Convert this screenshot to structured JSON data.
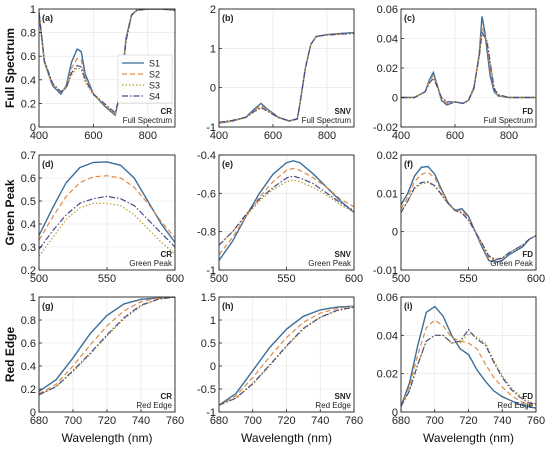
{
  "colors": {
    "S1": "#3b6e9a",
    "S2": "#e08a45",
    "S3": "#b89a2a",
    "S4": "#4b4b86"
  },
  "series_names": [
    "S1",
    "S2",
    "S3",
    "S4"
  ],
  "row_labels": [
    "Full Spectrum",
    "Green Peak",
    "Red Edge"
  ],
  "xlabel": "Wavelength (nm)",
  "chart_data": [
    {
      "type": "line",
      "panel": "(a)",
      "tag": "CR",
      "subtitle": "Full Spectrum",
      "xlim": [
        400,
        900
      ],
      "ylim": [
        0,
        1
      ],
      "xticks": [
        400,
        600,
        800
      ],
      "yticks": [
        0,
        0.2,
        0.4,
        0.6,
        0.8,
        1
      ],
      "ytick_labels": [
        "0",
        "0.2",
        "0.4",
        "0.6",
        "0.8",
        "1"
      ],
      "legend": "top-right",
      "x": [
        400,
        420,
        450,
        480,
        500,
        520,
        540,
        555,
        570,
        600,
        640,
        660,
        680,
        700,
        720,
        740,
        760,
        800,
        850,
        900
      ],
      "series": [
        {
          "name": "S1",
          "values": [
            0.97,
            0.55,
            0.35,
            0.28,
            0.35,
            0.55,
            0.66,
            0.64,
            0.45,
            0.28,
            0.18,
            0.14,
            0.1,
            0.3,
            0.75,
            0.95,
            0.99,
            1.0,
            1.0,
            0.99
          ]
        },
        {
          "name": "S2",
          "values": [
            0.97,
            0.55,
            0.36,
            0.29,
            0.34,
            0.5,
            0.58,
            0.57,
            0.42,
            0.28,
            0.19,
            0.15,
            0.11,
            0.3,
            0.74,
            0.95,
            0.99,
            1.0,
            1.0,
            0.99
          ]
        },
        {
          "name": "S3",
          "values": [
            0.97,
            0.56,
            0.36,
            0.3,
            0.33,
            0.44,
            0.5,
            0.49,
            0.38,
            0.27,
            0.19,
            0.15,
            0.11,
            0.29,
            0.72,
            0.94,
            0.99,
            1.0,
            1.0,
            0.99
          ]
        },
        {
          "name": "S4",
          "values": [
            0.97,
            0.56,
            0.37,
            0.3,
            0.33,
            0.46,
            0.52,
            0.51,
            0.4,
            0.28,
            0.2,
            0.16,
            0.12,
            0.3,
            0.73,
            0.95,
            0.99,
            1.0,
            1.0,
            0.99
          ]
        }
      ]
    },
    {
      "type": "line",
      "panel": "(b)",
      "tag": "SNV",
      "subtitle": "Full Spectrum",
      "xlim": [
        400,
        900
      ],
      "ylim": [
        -1,
        2
      ],
      "xticks": [
        400,
        600,
        800
      ],
      "yticks": [
        -1,
        0,
        1,
        2
      ],
      "ytick_labels": [
        "-1",
        "0",
        "1",
        "2"
      ],
      "x": [
        400,
        450,
        500,
        530,
        555,
        580,
        620,
        660,
        690,
        700,
        720,
        740,
        760,
        800,
        850,
        900
      ],
      "series": [
        {
          "name": "S1",
          "values": [
            -0.9,
            -0.85,
            -0.75,
            -0.55,
            -0.4,
            -0.55,
            -0.75,
            -0.85,
            -0.8,
            -0.4,
            0.5,
            1.1,
            1.3,
            1.35,
            1.38,
            1.4
          ]
        },
        {
          "name": "S2",
          "values": [
            -0.9,
            -0.85,
            -0.76,
            -0.58,
            -0.45,
            -0.57,
            -0.76,
            -0.85,
            -0.8,
            -0.4,
            0.5,
            1.1,
            1.3,
            1.35,
            1.37,
            1.39
          ]
        },
        {
          "name": "S3",
          "values": [
            -0.88,
            -0.83,
            -0.75,
            -0.62,
            -0.52,
            -0.6,
            -0.76,
            -0.84,
            -0.79,
            -0.4,
            0.5,
            1.1,
            1.3,
            1.34,
            1.36,
            1.38
          ]
        },
        {
          "name": "S4",
          "values": [
            -0.88,
            -0.83,
            -0.75,
            -0.6,
            -0.5,
            -0.6,
            -0.76,
            -0.84,
            -0.79,
            -0.4,
            0.5,
            1.1,
            1.3,
            1.34,
            1.36,
            1.38
          ]
        }
      ]
    },
    {
      "type": "line",
      "panel": "(c)",
      "tag": "FD",
      "subtitle": "Full Spectrum",
      "xlim": [
        400,
        900
      ],
      "ylim": [
        -0.02,
        0.06
      ],
      "xticks": [
        400,
        600,
        800
      ],
      "yticks": [
        -0.02,
        0,
        0.02,
        0.04,
        0.06
      ],
      "ytick_labels": [
        "-0.02",
        "0",
        "0.02",
        "0.04",
        "0.06"
      ],
      "x": [
        400,
        450,
        490,
        505,
        520,
        535,
        550,
        570,
        600,
        630,
        650,
        670,
        690,
        700,
        710,
        720,
        730,
        745,
        760,
        800,
        850,
        900
      ],
      "series": [
        {
          "name": "S1",
          "values": [
            0.0,
            0.0,
            0.004,
            0.012,
            0.017,
            0.008,
            -0.002,
            -0.005,
            -0.003,
            -0.004,
            -0.002,
            0.006,
            0.03,
            0.055,
            0.045,
            0.03,
            0.015,
            0.004,
            0.001,
            0.0,
            0.0,
            0.0
          ]
        },
        {
          "name": "S2",
          "values": [
            0.0,
            0.0,
            0.004,
            0.011,
            0.015,
            0.008,
            -0.001,
            -0.004,
            -0.003,
            -0.004,
            -0.002,
            0.007,
            0.03,
            0.048,
            0.042,
            0.034,
            0.02,
            0.005,
            0.001,
            0.0,
            0.0,
            0.0
          ]
        },
        {
          "name": "S3",
          "values": [
            0.0,
            0.0,
            0.004,
            0.01,
            0.013,
            0.007,
            0.0,
            -0.003,
            -0.003,
            -0.004,
            -0.002,
            0.007,
            0.028,
            0.043,
            0.042,
            0.038,
            0.025,
            0.007,
            0.002,
            0.0,
            0.0,
            0.0
          ]
        },
        {
          "name": "S4",
          "values": [
            0.0,
            0.0,
            0.004,
            0.01,
            0.013,
            0.007,
            0.0,
            -0.003,
            -0.003,
            -0.004,
            -0.002,
            0.007,
            0.028,
            0.044,
            0.041,
            0.036,
            0.024,
            0.006,
            0.002,
            0.0,
            0.0,
            0.0
          ]
        }
      ]
    },
    {
      "type": "line",
      "panel": "(d)",
      "tag": "CR",
      "subtitle": "Green Peak",
      "xlim": [
        500,
        600
      ],
      "ylim": [
        0.2,
        0.7
      ],
      "xticks": [
        500,
        550,
        600
      ],
      "yticks": [
        0.2,
        0.3,
        0.4,
        0.5,
        0.6,
        0.7
      ],
      "ytick_labels": [
        "0.2",
        "0.3",
        "0.4",
        "0.5",
        "0.6",
        "0.7"
      ],
      "x": [
        500,
        510,
        520,
        530,
        540,
        550,
        560,
        570,
        580,
        590,
        600
      ],
      "series": [
        {
          "name": "S1",
          "values": [
            0.35,
            0.47,
            0.58,
            0.645,
            0.668,
            0.67,
            0.655,
            0.6,
            0.5,
            0.4,
            0.32
          ]
        },
        {
          "name": "S2",
          "values": [
            0.33,
            0.43,
            0.52,
            0.58,
            0.605,
            0.61,
            0.6,
            0.56,
            0.49,
            0.41,
            0.34
          ]
        },
        {
          "name": "S3",
          "values": [
            0.26,
            0.34,
            0.42,
            0.47,
            0.49,
            0.49,
            0.48,
            0.44,
            0.38,
            0.32,
            0.27
          ]
        },
        {
          "name": "S4",
          "values": [
            0.29,
            0.37,
            0.44,
            0.49,
            0.51,
            0.52,
            0.51,
            0.48,
            0.42,
            0.36,
            0.3
          ]
        }
      ]
    },
    {
      "type": "line",
      "panel": "(e)",
      "tag": "SNV",
      "subtitle": "Green Peak",
      "xlim": [
        500,
        600
      ],
      "ylim": [
        -1,
        -0.4
      ],
      "xticks": [
        500,
        550,
        600
      ],
      "yticks": [
        -1,
        -0.8,
        -0.6,
        -0.4
      ],
      "ytick_labels": [
        "-1",
        "-0.8",
        "-0.6",
        "-0.4"
      ],
      "x": [
        500,
        510,
        520,
        530,
        540,
        550,
        555,
        560,
        570,
        580,
        590,
        600
      ],
      "series": [
        {
          "name": "S1",
          "values": [
            -0.95,
            -0.85,
            -0.72,
            -0.6,
            -0.5,
            -0.44,
            -0.43,
            -0.44,
            -0.5,
            -0.57,
            -0.64,
            -0.7
          ]
        },
        {
          "name": "S2",
          "values": [
            -0.92,
            -0.83,
            -0.72,
            -0.62,
            -0.54,
            -0.48,
            -0.47,
            -0.48,
            -0.52,
            -0.57,
            -0.63,
            -0.67
          ]
        },
        {
          "name": "S3",
          "values": [
            -0.87,
            -0.8,
            -0.72,
            -0.64,
            -0.58,
            -0.54,
            -0.53,
            -0.54,
            -0.57,
            -0.61,
            -0.66,
            -0.7
          ]
        },
        {
          "name": "S4",
          "values": [
            -0.87,
            -0.8,
            -0.71,
            -0.63,
            -0.57,
            -0.52,
            -0.51,
            -0.52,
            -0.55,
            -0.6,
            -0.65,
            -0.69
          ]
        }
      ]
    },
    {
      "type": "line",
      "panel": "(f)",
      "tag": "FD",
      "subtitle": "Green Peak",
      "xlim": [
        500,
        600
      ],
      "ylim": [
        -0.01,
        0.02
      ],
      "xticks": [
        500,
        550,
        600
      ],
      "yticks": [
        -0.01,
        0,
        0.01,
        0.02
      ],
      "ytick_labels": [
        "-0.01",
        "0",
        "0.01",
        "0.02"
      ],
      "x": [
        500,
        505,
        510,
        515,
        520,
        525,
        530,
        535,
        540,
        545,
        550,
        555,
        560,
        565,
        570,
        575,
        580,
        585,
        590,
        595,
        600
      ],
      "series": [
        {
          "name": "S1",
          "values": [
            0.007,
            0.01,
            0.0145,
            0.0168,
            0.017,
            0.015,
            0.011,
            0.0075,
            0.0055,
            0.006,
            0.004,
            0.0,
            -0.004,
            -0.0075,
            -0.008,
            -0.0075,
            -0.006,
            -0.005,
            -0.004,
            -0.002,
            -0.001
          ]
        },
        {
          "name": "S2",
          "values": [
            0.006,
            0.009,
            0.013,
            0.015,
            0.0155,
            0.014,
            0.0105,
            0.0075,
            0.0055,
            0.0055,
            0.0035,
            0.0,
            -0.0035,
            -0.007,
            -0.0075,
            -0.007,
            -0.0055,
            -0.0045,
            -0.0035,
            -0.002,
            -0.001
          ]
        },
        {
          "name": "S3",
          "values": [
            0.005,
            0.008,
            0.0112,
            0.0125,
            0.0128,
            0.0118,
            0.0095,
            0.0072,
            0.0055,
            0.0048,
            0.003,
            0.0,
            -0.003,
            -0.0062,
            -0.0072,
            -0.0068,
            -0.0055,
            -0.0045,
            -0.0035,
            -0.002,
            -0.001
          ]
        },
        {
          "name": "S4",
          "values": [
            0.005,
            0.008,
            0.0115,
            0.0128,
            0.013,
            0.012,
            0.0097,
            0.0073,
            0.0056,
            0.0049,
            0.003,
            0.0,
            -0.003,
            -0.0064,
            -0.0073,
            -0.0069,
            -0.0055,
            -0.0045,
            -0.0035,
            -0.002,
            -0.001
          ]
        }
      ]
    },
    {
      "type": "line",
      "panel": "(g)",
      "tag": "CR",
      "subtitle": "Red Edge",
      "xlim": [
        680,
        760
      ],
      "ylim": [
        0,
        1
      ],
      "xticks": [
        680,
        700,
        720,
        740,
        760
      ],
      "yticks": [
        0,
        0.2,
        0.4,
        0.6,
        0.8,
        1
      ],
      "ytick_labels": [
        "0",
        "0.2",
        "0.4",
        "0.6",
        "0.8",
        "1"
      ],
      "x": [
        680,
        690,
        700,
        710,
        720,
        730,
        740,
        750,
        760
      ],
      "series": [
        {
          "name": "S1",
          "values": [
            0.18,
            0.28,
            0.47,
            0.68,
            0.84,
            0.94,
            0.98,
            0.99,
            1.0
          ]
        },
        {
          "name": "S2",
          "values": [
            0.16,
            0.24,
            0.4,
            0.58,
            0.75,
            0.88,
            0.96,
            0.99,
            1.0
          ]
        },
        {
          "name": "S3",
          "values": [
            0.15,
            0.22,
            0.35,
            0.5,
            0.66,
            0.81,
            0.92,
            0.98,
            1.0
          ]
        },
        {
          "name": "S4",
          "values": [
            0.15,
            0.22,
            0.36,
            0.51,
            0.67,
            0.82,
            0.93,
            0.98,
            1.0
          ]
        }
      ]
    },
    {
      "type": "line",
      "panel": "(h)",
      "tag": "SNV",
      "subtitle": "Red Edge",
      "xlim": [
        680,
        760
      ],
      "ylim": [
        -1,
        1.5
      ],
      "xticks": [
        680,
        700,
        720,
        740,
        760
      ],
      "yticks": [
        -1,
        -0.5,
        0,
        0.5,
        1,
        1.5
      ],
      "ytick_labels": [
        "-1",
        "-0.5",
        "0",
        "0.5",
        "1",
        "1.5"
      ],
      "x": [
        680,
        690,
        700,
        710,
        720,
        730,
        740,
        750,
        760
      ],
      "series": [
        {
          "name": "S1",
          "values": [
            -0.85,
            -0.6,
            -0.1,
            0.4,
            0.8,
            1.08,
            1.22,
            1.28,
            1.3
          ]
        },
        {
          "name": "S2",
          "values": [
            -0.85,
            -0.65,
            -0.25,
            0.2,
            0.62,
            0.95,
            1.15,
            1.25,
            1.3
          ]
        },
        {
          "name": "S3",
          "values": [
            -0.85,
            -0.7,
            -0.4,
            0.0,
            0.42,
            0.8,
            1.05,
            1.2,
            1.28
          ]
        },
        {
          "name": "S4",
          "values": [
            -0.85,
            -0.7,
            -0.38,
            0.02,
            0.44,
            0.82,
            1.06,
            1.21,
            1.28
          ]
        }
      ]
    },
    {
      "type": "line",
      "panel": "(i)",
      "tag": "FD",
      "subtitle": "Red Edge",
      "xlim": [
        680,
        760
      ],
      "ylim": [
        0,
        0.06
      ],
      "xticks": [
        680,
        700,
        720,
        740,
        760
      ],
      "yticks": [
        0,
        0.02,
        0.04,
        0.06
      ],
      "ytick_labels": [
        "0",
        "0.02",
        "0.04",
        "0.06"
      ],
      "x": [
        680,
        685,
        690,
        695,
        700,
        705,
        710,
        715,
        720,
        725,
        730,
        735,
        740,
        745,
        750,
        755,
        760
      ],
      "series": [
        {
          "name": "S1",
          "values": [
            0.003,
            0.015,
            0.035,
            0.052,
            0.055,
            0.05,
            0.04,
            0.033,
            0.03,
            0.022,
            0.016,
            0.011,
            0.008,
            0.006,
            0.004,
            0.003,
            0.002
          ]
        },
        {
          "name": "S2",
          "values": [
            0.003,
            0.013,
            0.03,
            0.044,
            0.048,
            0.045,
            0.039,
            0.037,
            0.036,
            0.033,
            0.025,
            0.018,
            0.013,
            0.009,
            0.006,
            0.004,
            0.003
          ]
        },
        {
          "name": "S3",
          "values": [
            0.003,
            0.011,
            0.025,
            0.037,
            0.04,
            0.04,
            0.036,
            0.036,
            0.041,
            0.039,
            0.036,
            0.027,
            0.019,
            0.013,
            0.009,
            0.006,
            0.004
          ]
        },
        {
          "name": "S4",
          "values": [
            0.003,
            0.011,
            0.025,
            0.037,
            0.04,
            0.04,
            0.036,
            0.037,
            0.043,
            0.038,
            0.035,
            0.026,
            0.018,
            0.012,
            0.008,
            0.005,
            0.004
          ]
        }
      ]
    }
  ]
}
